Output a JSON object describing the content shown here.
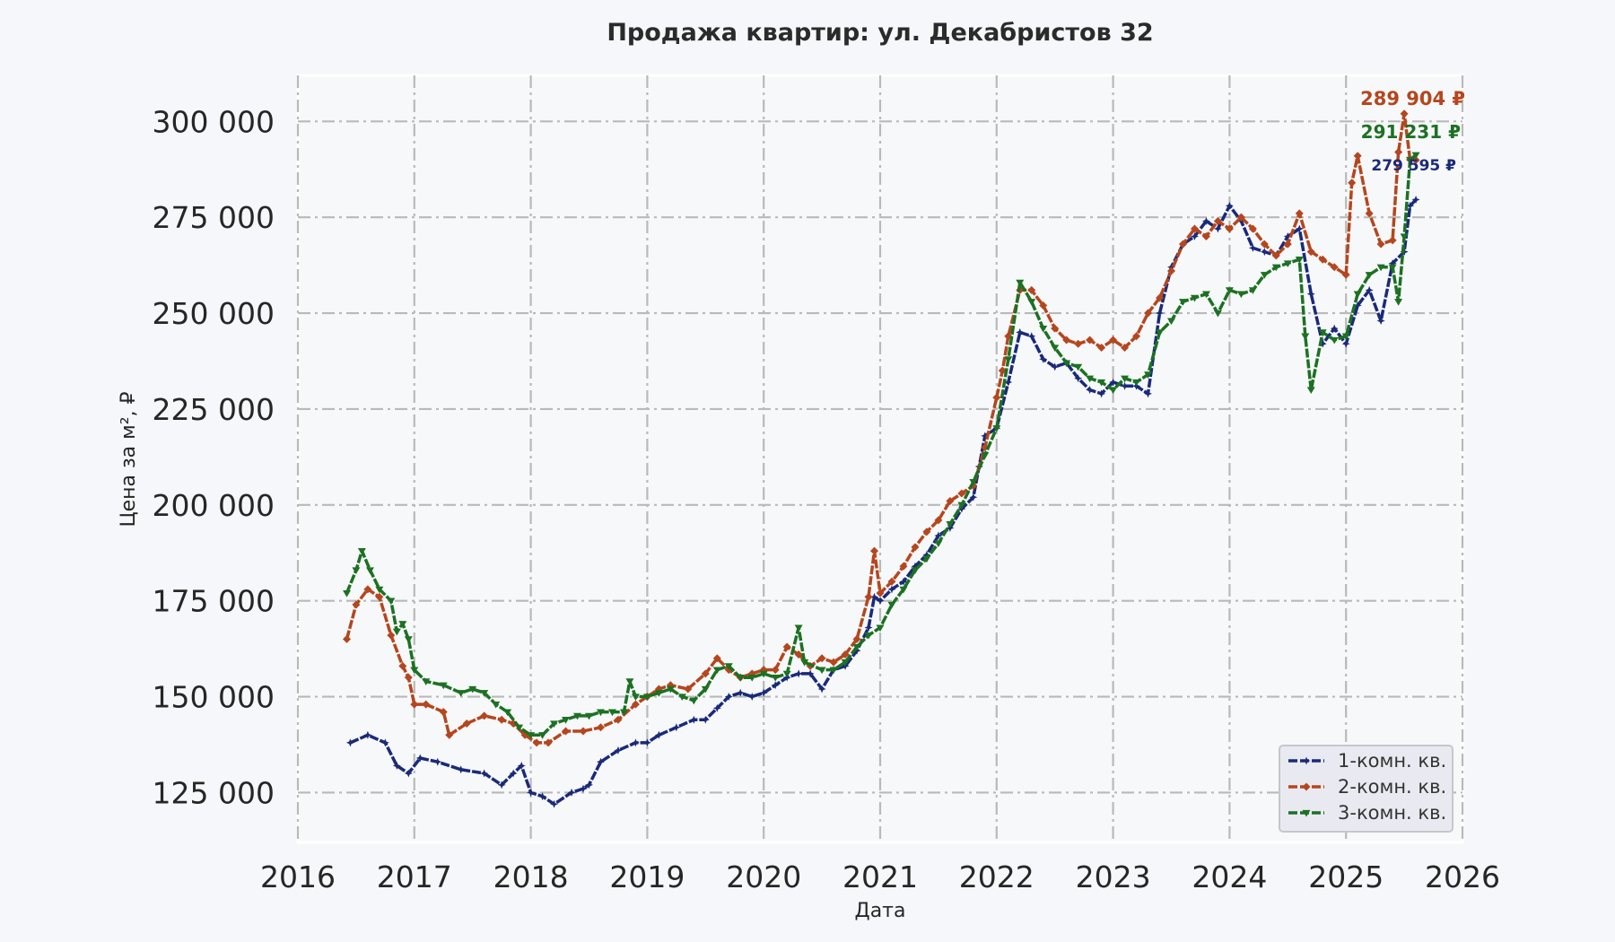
{
  "chart_data": {
    "type": "line",
    "title": "Продажа квартир: ул. Декабристов 32",
    "xlabel": "Дата",
    "ylabel": "Цена за м², ₽",
    "xlim": [
      2016,
      2026
    ],
    "ylim": [
      112000,
      312000
    ],
    "x_ticks": [
      "2016",
      "2017",
      "2018",
      "2019",
      "2020",
      "2021",
      "2022",
      "2023",
      "2024",
      "2025",
      "2026"
    ],
    "y_ticks": [
      {
        "value": 125000,
        "label": "125 000"
      },
      {
        "value": 150000,
        "label": "150 000"
      },
      {
        "value": 175000,
        "label": "175 000"
      },
      {
        "value": 200000,
        "label": "200 000"
      },
      {
        "value": 225000,
        "label": "225 000"
      },
      {
        "value": 250000,
        "label": "250 000"
      },
      {
        "value": 275000,
        "label": "275 000"
      },
      {
        "value": 300000,
        "label": "300 000"
      }
    ],
    "grid": true,
    "legend_position": "bottom-right",
    "series": [
      {
        "name": "1-комн. кв.",
        "color": "#1a2a7a",
        "marker": "star",
        "end_label": "279 595 ₽",
        "points": [
          [
            2016.45,
            138000
          ],
          [
            2016.6,
            140000
          ],
          [
            2016.75,
            138000
          ],
          [
            2016.85,
            132000
          ],
          [
            2016.95,
            130000
          ],
          [
            2017.05,
            134000
          ],
          [
            2017.2,
            133000
          ],
          [
            2017.4,
            131000
          ],
          [
            2017.6,
            130000
          ],
          [
            2017.75,
            127000
          ],
          [
            2017.85,
            130000
          ],
          [
            2017.92,
            132000
          ],
          [
            2018.0,
            125000
          ],
          [
            2018.1,
            124000
          ],
          [
            2018.2,
            122000
          ],
          [
            2018.35,
            125000
          ],
          [
            2018.45,
            126000
          ],
          [
            2018.5,
            127000
          ],
          [
            2018.6,
            133000
          ],
          [
            2018.75,
            136000
          ],
          [
            2018.9,
            138000
          ],
          [
            2019.0,
            138000
          ],
          [
            2019.1,
            140000
          ],
          [
            2019.25,
            142000
          ],
          [
            2019.4,
            144000
          ],
          [
            2019.5,
            144000
          ],
          [
            2019.6,
            147000
          ],
          [
            2019.7,
            150000
          ],
          [
            2019.8,
            151000
          ],
          [
            2019.9,
            150000
          ],
          [
            2020.0,
            151000
          ],
          [
            2020.1,
            153000
          ],
          [
            2020.2,
            155000
          ],
          [
            2020.3,
            156000
          ],
          [
            2020.4,
            156000
          ],
          [
            2020.5,
            152000
          ],
          [
            2020.6,
            157000
          ],
          [
            2020.7,
            158000
          ],
          [
            2020.8,
            162000
          ],
          [
            2020.9,
            168000
          ],
          [
            2020.95,
            176000
          ],
          [
            2021.0,
            175000
          ],
          [
            2021.1,
            178000
          ],
          [
            2021.2,
            180000
          ],
          [
            2021.3,
            184000
          ],
          [
            2021.4,
            187000
          ],
          [
            2021.5,
            192000
          ],
          [
            2021.6,
            194000
          ],
          [
            2021.7,
            199000
          ],
          [
            2021.8,
            202000
          ],
          [
            2021.85,
            210000
          ],
          [
            2021.9,
            218000
          ],
          [
            2022.0,
            220000
          ],
          [
            2022.1,
            232000
          ],
          [
            2022.2,
            245000
          ],
          [
            2022.3,
            244000
          ],
          [
            2022.4,
            238000
          ],
          [
            2022.5,
            236000
          ],
          [
            2022.6,
            237000
          ],
          [
            2022.7,
            233000
          ],
          [
            2022.8,
            230000
          ],
          [
            2022.9,
            229000
          ],
          [
            2023.0,
            232000
          ],
          [
            2023.1,
            231000
          ],
          [
            2023.2,
            231000
          ],
          [
            2023.3,
            229000
          ],
          [
            2023.4,
            250000
          ],
          [
            2023.5,
            262000
          ],
          [
            2023.6,
            268000
          ],
          [
            2023.7,
            270000
          ],
          [
            2023.8,
            274000
          ],
          [
            2023.9,
            272000
          ],
          [
            2024.0,
            278000
          ],
          [
            2024.1,
            274000
          ],
          [
            2024.2,
            267000
          ],
          [
            2024.3,
            266000
          ],
          [
            2024.4,
            265000
          ],
          [
            2024.5,
            270000
          ],
          [
            2024.6,
            272000
          ],
          [
            2024.7,
            255000
          ],
          [
            2024.8,
            242000
          ],
          [
            2024.9,
            246000
          ],
          [
            2025.0,
            242000
          ],
          [
            2025.1,
            252000
          ],
          [
            2025.2,
            256000
          ],
          [
            2025.3,
            248000
          ],
          [
            2025.4,
            263000
          ],
          [
            2025.5,
            266000
          ],
          [
            2025.55,
            278000
          ],
          [
            2025.6,
            279595
          ]
        ]
      },
      {
        "name": "2-комн. кв.",
        "color": "#b5461e",
        "marker": "diamond",
        "end_label": "289 904 ₽",
        "points": [
          [
            2016.42,
            165000
          ],
          [
            2016.5,
            174000
          ],
          [
            2016.6,
            178000
          ],
          [
            2016.7,
            176000
          ],
          [
            2016.8,
            166000
          ],
          [
            2016.9,
            158000
          ],
          [
            2016.95,
            155000
          ],
          [
            2017.0,
            148000
          ],
          [
            2017.1,
            148000
          ],
          [
            2017.25,
            146000
          ],
          [
            2017.3,
            140000
          ],
          [
            2017.45,
            143000
          ],
          [
            2017.6,
            145000
          ],
          [
            2017.75,
            144000
          ],
          [
            2017.85,
            143000
          ],
          [
            2017.95,
            140000
          ],
          [
            2018.05,
            138000
          ],
          [
            2018.15,
            138000
          ],
          [
            2018.3,
            141000
          ],
          [
            2018.45,
            141000
          ],
          [
            2018.6,
            142000
          ],
          [
            2018.75,
            144000
          ],
          [
            2018.9,
            148000
          ],
          [
            2019.0,
            150000
          ],
          [
            2019.1,
            152000
          ],
          [
            2019.2,
            153000
          ],
          [
            2019.35,
            152000
          ],
          [
            2019.5,
            156000
          ],
          [
            2019.6,
            160000
          ],
          [
            2019.7,
            157000
          ],
          [
            2019.8,
            155000
          ],
          [
            2019.9,
            156000
          ],
          [
            2020.0,
            157000
          ],
          [
            2020.1,
            157000
          ],
          [
            2020.2,
            163000
          ],
          [
            2020.3,
            161000
          ],
          [
            2020.4,
            158000
          ],
          [
            2020.5,
            160000
          ],
          [
            2020.6,
            159000
          ],
          [
            2020.7,
            161000
          ],
          [
            2020.8,
            165000
          ],
          [
            2020.9,
            176000
          ],
          [
            2020.95,
            188000
          ],
          [
            2021.0,
            177000
          ],
          [
            2021.1,
            180000
          ],
          [
            2021.2,
            184000
          ],
          [
            2021.3,
            189000
          ],
          [
            2021.4,
            193000
          ],
          [
            2021.5,
            196000
          ],
          [
            2021.6,
            201000
          ],
          [
            2021.7,
            203000
          ],
          [
            2021.8,
            205000
          ],
          [
            2021.9,
            215000
          ],
          [
            2022.0,
            228000
          ],
          [
            2022.05,
            235000
          ],
          [
            2022.1,
            244000
          ],
          [
            2022.2,
            256000
          ],
          [
            2022.3,
            256000
          ],
          [
            2022.4,
            252000
          ],
          [
            2022.5,
            246000
          ],
          [
            2022.6,
            243000
          ],
          [
            2022.7,
            242000
          ],
          [
            2022.8,
            243000
          ],
          [
            2022.9,
            241000
          ],
          [
            2023.0,
            243000
          ],
          [
            2023.1,
            241000
          ],
          [
            2023.2,
            244000
          ],
          [
            2023.3,
            250000
          ],
          [
            2023.4,
            254000
          ],
          [
            2023.5,
            261000
          ],
          [
            2023.6,
            268000
          ],
          [
            2023.7,
            272000
          ],
          [
            2023.8,
            270000
          ],
          [
            2023.9,
            274000
          ],
          [
            2024.0,
            272000
          ],
          [
            2024.1,
            275000
          ],
          [
            2024.2,
            272000
          ],
          [
            2024.3,
            268000
          ],
          [
            2024.4,
            265000
          ],
          [
            2024.5,
            268000
          ],
          [
            2024.6,
            276000
          ],
          [
            2024.7,
            266000
          ],
          [
            2024.8,
            264000
          ],
          [
            2024.9,
            262000
          ],
          [
            2025.0,
            260000
          ],
          [
            2025.05,
            284000
          ],
          [
            2025.1,
            291000
          ],
          [
            2025.2,
            276000
          ],
          [
            2025.3,
            268000
          ],
          [
            2025.4,
            269000
          ],
          [
            2025.45,
            292000
          ],
          [
            2025.5,
            302000
          ],
          [
            2025.55,
            290000
          ],
          [
            2025.6,
            289904
          ]
        ]
      },
      {
        "name": "3-комн. кв.",
        "color": "#1c7122",
        "marker": "triangle-down",
        "end_label": "291 231 ₽",
        "points": [
          [
            2016.42,
            177000
          ],
          [
            2016.5,
            183000
          ],
          [
            2016.55,
            188000
          ],
          [
            2016.62,
            183000
          ],
          [
            2016.7,
            178000
          ],
          [
            2016.8,
            175000
          ],
          [
            2016.85,
            167000
          ],
          [
            2016.9,
            169000
          ],
          [
            2016.95,
            165000
          ],
          [
            2017.0,
            157000
          ],
          [
            2017.1,
            154000
          ],
          [
            2017.25,
            153000
          ],
          [
            2017.4,
            151000
          ],
          [
            2017.5,
            152000
          ],
          [
            2017.6,
            151000
          ],
          [
            2017.7,
            148000
          ],
          [
            2017.8,
            146000
          ],
          [
            2017.9,
            142000
          ],
          [
            2018.0,
            140000
          ],
          [
            2018.1,
            140000
          ],
          [
            2018.2,
            143000
          ],
          [
            2018.3,
            144000
          ],
          [
            2018.4,
            145000
          ],
          [
            2018.5,
            145000
          ],
          [
            2018.6,
            146000
          ],
          [
            2018.7,
            146000
          ],
          [
            2018.8,
            146000
          ],
          [
            2018.85,
            154000
          ],
          [
            2018.9,
            150000
          ],
          [
            2019.0,
            150000
          ],
          [
            2019.1,
            151000
          ],
          [
            2019.2,
            152000
          ],
          [
            2019.3,
            150000
          ],
          [
            2019.4,
            149000
          ],
          [
            2019.5,
            152000
          ],
          [
            2019.6,
            157000
          ],
          [
            2019.7,
            158000
          ],
          [
            2019.8,
            155000
          ],
          [
            2019.9,
            155000
          ],
          [
            2020.0,
            156000
          ],
          [
            2020.1,
            155000
          ],
          [
            2020.2,
            156000
          ],
          [
            2020.3,
            168000
          ],
          [
            2020.35,
            159000
          ],
          [
            2020.5,
            157000
          ],
          [
            2020.6,
            157000
          ],
          [
            2020.7,
            159000
          ],
          [
            2020.8,
            163000
          ],
          [
            2020.9,
            166000
          ],
          [
            2021.0,
            168000
          ],
          [
            2021.1,
            174000
          ],
          [
            2021.2,
            178000
          ],
          [
            2021.3,
            183000
          ],
          [
            2021.4,
            186000
          ],
          [
            2021.5,
            190000
          ],
          [
            2021.6,
            195000
          ],
          [
            2021.7,
            200000
          ],
          [
            2021.8,
            206000
          ],
          [
            2021.9,
            213000
          ],
          [
            2022.0,
            220000
          ],
          [
            2022.1,
            238000
          ],
          [
            2022.2,
            258000
          ],
          [
            2022.3,
            253000
          ],
          [
            2022.4,
            246000
          ],
          [
            2022.5,
            241000
          ],
          [
            2022.6,
            237000
          ],
          [
            2022.7,
            236000
          ],
          [
            2022.8,
            233000
          ],
          [
            2022.9,
            232000
          ],
          [
            2023.0,
            230000
          ],
          [
            2023.1,
            233000
          ],
          [
            2023.2,
            232000
          ],
          [
            2023.3,
            234000
          ],
          [
            2023.4,
            245000
          ],
          [
            2023.5,
            248000
          ],
          [
            2023.6,
            253000
          ],
          [
            2023.7,
            254000
          ],
          [
            2023.8,
            255000
          ],
          [
            2023.9,
            250000
          ],
          [
            2024.0,
            256000
          ],
          [
            2024.1,
            255000
          ],
          [
            2024.2,
            256000
          ],
          [
            2024.3,
            260000
          ],
          [
            2024.4,
            262000
          ],
          [
            2024.5,
            263000
          ],
          [
            2024.6,
            264000
          ],
          [
            2024.65,
            244000
          ],
          [
            2024.7,
            230000
          ],
          [
            2024.8,
            245000
          ],
          [
            2024.9,
            243000
          ],
          [
            2025.0,
            244000
          ],
          [
            2025.1,
            255000
          ],
          [
            2025.2,
            260000
          ],
          [
            2025.3,
            262000
          ],
          [
            2025.4,
            262000
          ],
          [
            2025.45,
            253000
          ],
          [
            2025.5,
            270000
          ],
          [
            2025.55,
            290000
          ],
          [
            2025.6,
            291231
          ]
        ]
      }
    ]
  }
}
